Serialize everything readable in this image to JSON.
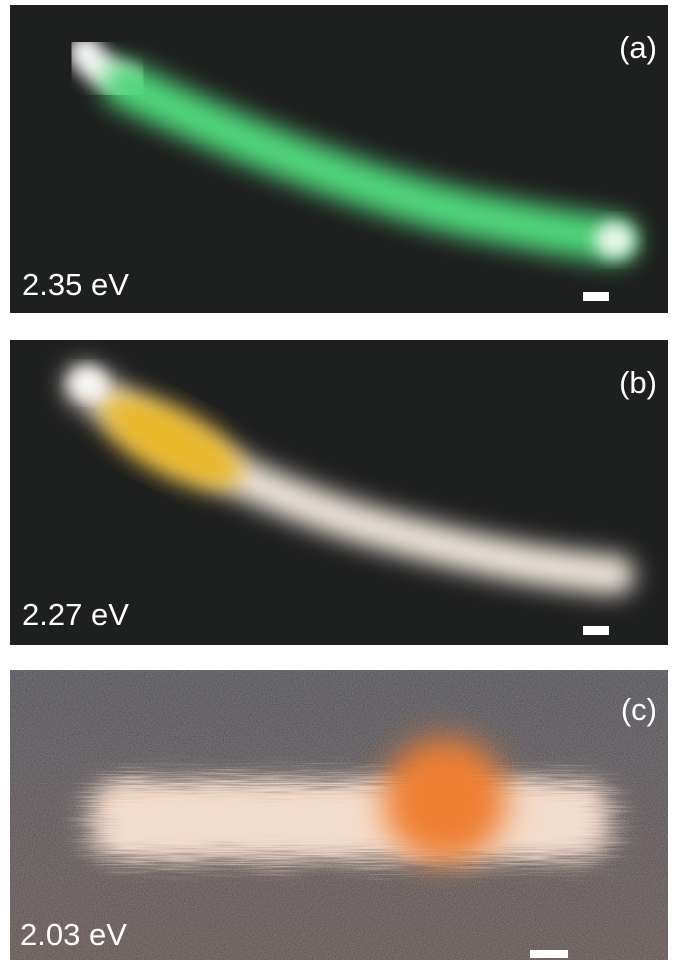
{
  "panels": [
    {
      "label": "(a)",
      "energy": "2.35 eV"
    },
    {
      "label": "(b)",
      "energy": "2.27 eV"
    },
    {
      "label": "(c)",
      "energy": "2.03 eV"
    }
  ]
}
